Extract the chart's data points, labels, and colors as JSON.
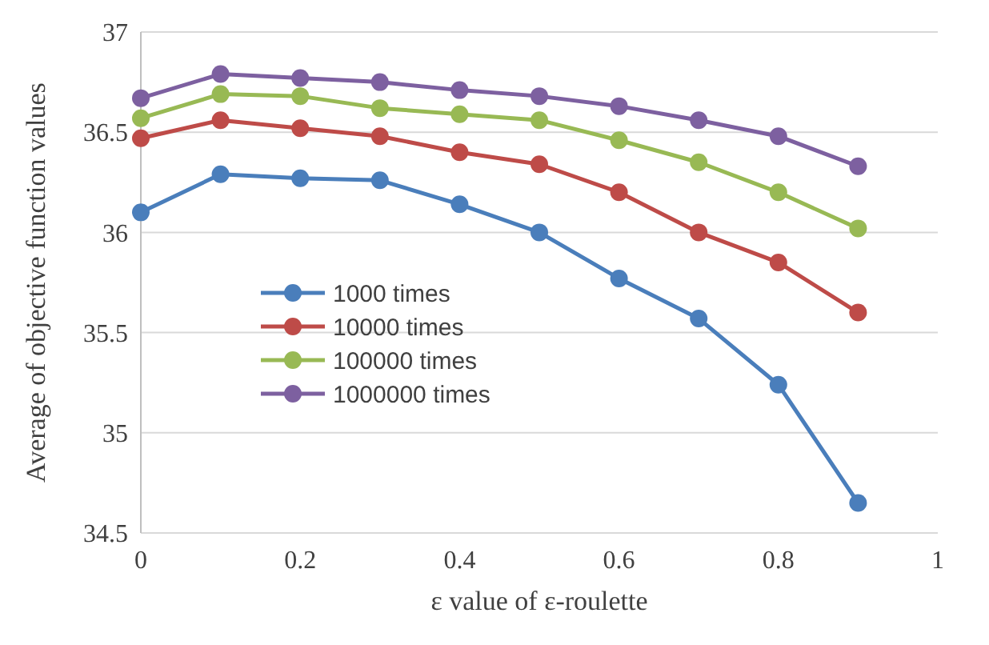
{
  "chart_data": {
    "type": "line",
    "xlabel": "ε value of ε-roulette",
    "ylabel": "Average of objective function values",
    "x": [
      0,
      0.1,
      0.2,
      0.3,
      0.4,
      0.5,
      0.6,
      0.7,
      0.8,
      0.9
    ],
    "series": [
      {
        "name": "1000 times",
        "color": "#4a7ebb",
        "values": [
          36.1,
          36.29,
          36.27,
          36.26,
          36.14,
          36.0,
          35.77,
          35.57,
          35.24,
          34.65
        ]
      },
      {
        "name": "10000 times",
        "color": "#be4b48",
        "values": [
          36.47,
          36.56,
          36.52,
          36.48,
          36.4,
          36.34,
          36.2,
          36.0,
          35.85,
          35.6
        ]
      },
      {
        "name": "100000 times",
        "color": "#98b954",
        "values": [
          36.57,
          36.69,
          36.68,
          36.62,
          36.59,
          36.56,
          36.46,
          36.35,
          36.2,
          36.02
        ]
      },
      {
        "name": "1000000 times",
        "color": "#7d60a0",
        "values": [
          36.67,
          36.79,
          36.77,
          36.75,
          36.71,
          36.68,
          36.63,
          36.56,
          36.48,
          36.33
        ]
      }
    ],
    "xlim": [
      0,
      1
    ],
    "xticks": [
      0,
      0.2,
      0.4,
      0.6,
      0.8,
      1
    ],
    "ylim": [
      34.5,
      37
    ],
    "yticks": [
      34.5,
      35,
      35.5,
      36,
      36.5,
      37
    ],
    "grid": "y",
    "legend": "bottom left",
    "marker": "circle",
    "line_style": "solid"
  }
}
